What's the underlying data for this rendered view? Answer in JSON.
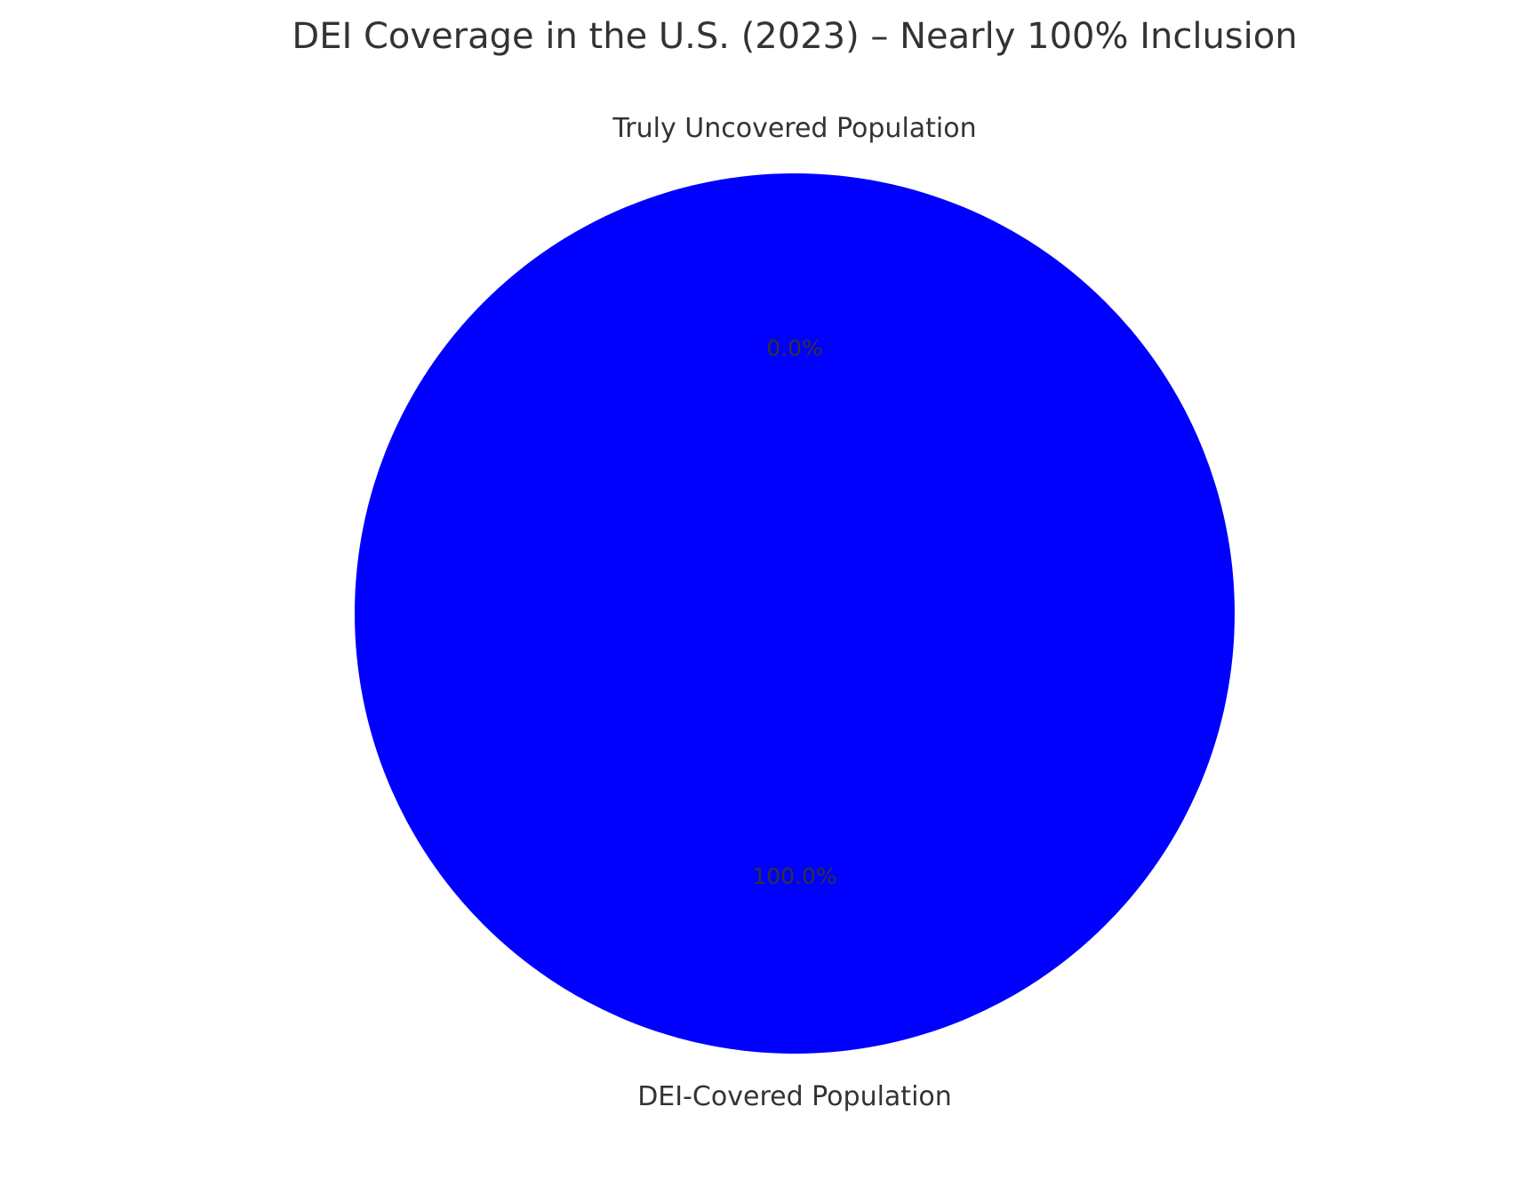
{
  "chart_data": {
    "type": "pie",
    "title": "DEI Coverage in the U.S. (2023) – Nearly 100% Inclusion",
    "labels": [
      "DEI-Covered Population",
      "Truly Uncovered Population"
    ],
    "values": [
      100.0,
      0.0
    ],
    "percent_labels": [
      "100.0%",
      "0.0%"
    ],
    "colors": [
      "#0000ff",
      "#ff0000"
    ],
    "text_color": "#333333",
    "start_angle_deg": 90,
    "legend": "none"
  }
}
